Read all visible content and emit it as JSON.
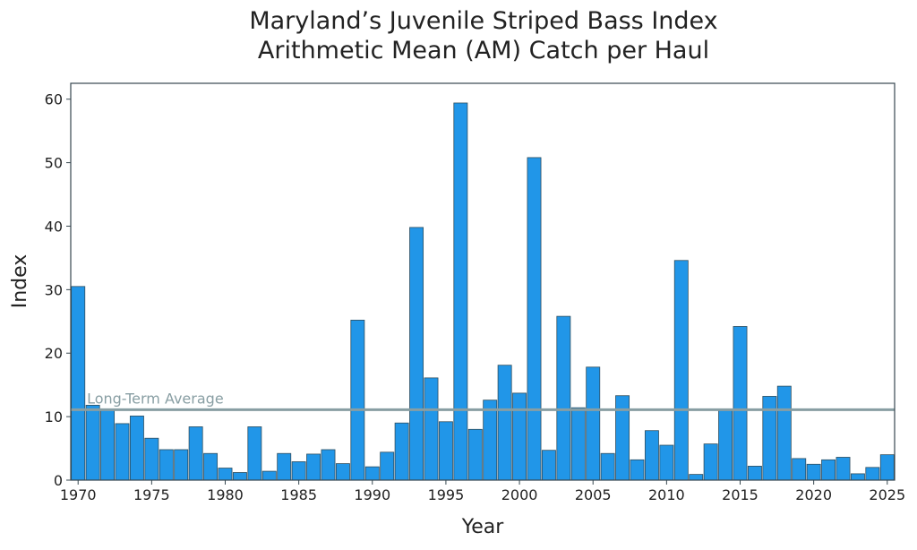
{
  "chart_data": {
    "type": "bar",
    "title_line1": "Maryland’s Juvenile Striped Bass Index",
    "title_line2": "Arithmetic Mean (AM) Catch per Haul",
    "xlabel": "Year",
    "ylabel": "Index",
    "xlim": [
      1969.5,
      2025.5
    ],
    "ylim": [
      0,
      62.5
    ],
    "xticks": [
      "1970",
      "1975",
      "1980",
      "1985",
      "1990",
      "1995",
      "2000",
      "2005",
      "2010",
      "2015",
      "2020",
      "2025"
    ],
    "yticks": [
      "0",
      "10",
      "20",
      "30",
      "40",
      "50",
      "60"
    ],
    "reference_line": {
      "label": "Long-Term Average",
      "value": 11.1
    },
    "x": [
      1970,
      1971,
      1972,
      1973,
      1974,
      1975,
      1976,
      1977,
      1978,
      1979,
      1980,
      1981,
      1982,
      1983,
      1984,
      1985,
      1986,
      1987,
      1988,
      1989,
      1990,
      1991,
      1992,
      1993,
      1994,
      1995,
      1996,
      1997,
      1998,
      1999,
      2000,
      2001,
      2002,
      2003,
      2004,
      2005,
      2006,
      2007,
      2008,
      2009,
      2010,
      2011,
      2012,
      2013,
      2014,
      2015,
      2016,
      2017,
      2018,
      2019,
      2020,
      2021,
      2022,
      2023,
      2024,
      2025
    ],
    "values": [
      30.5,
      11.8,
      11.0,
      8.9,
      10.1,
      6.6,
      4.8,
      4.8,
      8.4,
      4.2,
      1.9,
      1.2,
      8.4,
      1.4,
      4.2,
      2.9,
      4.1,
      4.8,
      2.6,
      25.2,
      2.1,
      4.4,
      9.0,
      39.8,
      16.1,
      9.2,
      59.4,
      8.0,
      12.6,
      18.1,
      13.7,
      50.8,
      4.7,
      25.8,
      11.4,
      17.8,
      4.2,
      13.3,
      3.2,
      7.8,
      5.5,
      34.6,
      0.9,
      5.7,
      11.0,
      24.2,
      2.2,
      13.2,
      14.8,
      3.4,
      2.5,
      3.2,
      3.6,
      1.0,
      2.0,
      4.0
    ],
    "colors": {
      "bar_fill": "#2196e8",
      "bar_edge": "#2f4e5e",
      "reference_line": "#889ea3",
      "axes": "#37474f",
      "text": "#222222"
    },
    "grid": false
  }
}
